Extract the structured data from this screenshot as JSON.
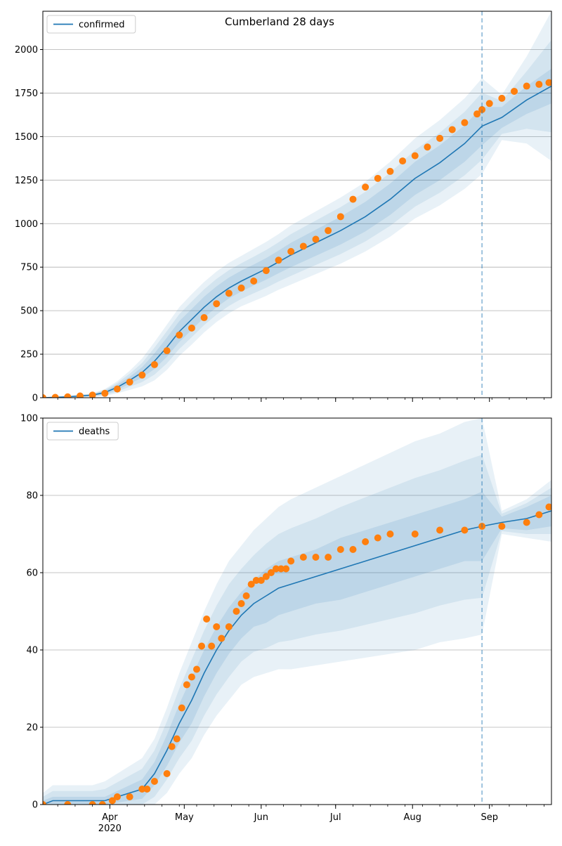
{
  "figure_title": "Cumberland 28 days",
  "chart_data": [
    {
      "type": "line",
      "title": "Cumberland 28 days",
      "legend": [
        "confirmed"
      ],
      "legend_position": "top-left",
      "xlim": [
        0,
        205
      ],
      "ylim": [
        0,
        2220
      ],
      "yticks": [
        0,
        250,
        500,
        750,
        1000,
        1250,
        1500,
        1750,
        2000
      ],
      "grid": "horizontal",
      "forecast_start_day": 177,
      "x_tick_days": [
        27,
        57,
        88,
        118,
        149,
        180
      ],
      "x_tick_labels": [
        "Apr",
        "May",
        "Jun",
        "Jul",
        "Aug",
        "Sep"
      ],
      "x_year_label": "2020",
      "x_unit": "days since Mar 5 2020",
      "model_curve": {
        "name": "confirmed",
        "x": [
          0,
          10,
          20,
          25,
          30,
          35,
          40,
          45,
          50,
          55,
          60,
          65,
          70,
          75,
          80,
          85,
          90,
          95,
          100,
          110,
          120,
          130,
          140,
          150,
          160,
          170,
          177,
          185,
          195,
          205
        ],
        "y": [
          0,
          5,
          15,
          30,
          60,
          100,
          145,
          210,
          290,
          380,
          450,
          520,
          580,
          630,
          670,
          705,
          740,
          780,
          820,
          890,
          960,
          1040,
          1140,
          1260,
          1350,
          1460,
          1560,
          1610,
          1710,
          1790
        ]
      },
      "observed": {
        "x": [
          0,
          5,
          10,
          15,
          20,
          25,
          30,
          35,
          40,
          45,
          50,
          55,
          60,
          65,
          70,
          75,
          80,
          85,
          90,
          95,
          100,
          105,
          110,
          115,
          120,
          125,
          130,
          135,
          140,
          145,
          150,
          155,
          160,
          165,
          170,
          175,
          177,
          180,
          185,
          190,
          195,
          200,
          204
        ],
        "y": [
          0,
          2,
          5,
          10,
          15,
          25,
          50,
          90,
          130,
          190,
          270,
          360,
          400,
          460,
          540,
          600,
          630,
          670,
          730,
          790,
          840,
          870,
          910,
          960,
          1040,
          1140,
          1210,
          1260,
          1300,
          1360,
          1390,
          1440,
          1490,
          1540,
          1580,
          1630,
          1655,
          1690,
          1720,
          1760,
          1790,
          1800,
          1810
        ]
      },
      "band_inner_halfwidth": [
        0,
        3,
        5,
        10,
        15,
        20,
        30,
        45,
        55,
        60,
        60,
        60,
        60,
        60,
        60,
        60,
        62,
        65,
        70,
        75,
        80,
        85,
        90,
        95,
        100,
        105,
        110,
        60,
        80,
        100
      ],
      "band_outer_halfwidth": [
        0,
        6,
        10,
        20,
        35,
        55,
        80,
        110,
        130,
        140,
        145,
        145,
        145,
        145,
        145,
        150,
        155,
        160,
        170,
        180,
        190,
        200,
        215,
        230,
        245,
        260,
        275,
        130,
        250,
        430
      ]
    },
    {
      "type": "line",
      "legend": [
        "deaths"
      ],
      "legend_position": "top-left",
      "xlim": [
        0,
        205
      ],
      "ylim": [
        0,
        100
      ],
      "yticks": [
        0,
        20,
        40,
        60,
        80,
        100
      ],
      "grid": "horizontal",
      "forecast_start_day": 177,
      "x_tick_days": [
        27,
        57,
        88,
        118,
        149,
        180
      ],
      "x_tick_labels": [
        "Apr",
        "May",
        "Jun",
        "Jul",
        "Aug",
        "Sep"
      ],
      "x_year_label": "2020",
      "x_unit": "days since Mar 5 2020",
      "model_curve": {
        "name": "deaths",
        "x": [
          0,
          4,
          20,
          25,
          30,
          35,
          40,
          45,
          50,
          55,
          60,
          65,
          70,
          75,
          80,
          85,
          90,
          95,
          100,
          110,
          120,
          130,
          140,
          150,
          160,
          170,
          177,
          185,
          195,
          205
        ],
        "y": [
          0,
          1,
          1,
          1,
          2,
          3,
          4,
          8,
          14,
          21,
          27,
          34,
          40,
          45,
          49,
          52,
          54,
          56,
          57,
          59,
          61,
          63,
          65,
          67,
          69,
          71,
          72,
          73,
          74,
          76
        ]
      },
      "observed": {
        "x": [
          0,
          10,
          20,
          24,
          28,
          30,
          35,
          40,
          42,
          45,
          50,
          52,
          54,
          56,
          58,
          60,
          62,
          64,
          66,
          68,
          70,
          72,
          75,
          78,
          80,
          82,
          84,
          86,
          88,
          90,
          92,
          94,
          96,
          98,
          100,
          105,
          110,
          115,
          120,
          125,
          130,
          135,
          140,
          150,
          160,
          170,
          177,
          185,
          195,
          200,
          204
        ],
        "y": [
          0,
          0,
          0,
          0,
          1,
          2,
          2,
          4,
          4,
          6,
          8,
          15,
          17,
          25,
          31,
          33,
          35,
          41,
          48,
          41,
          46,
          43,
          46,
          50,
          52,
          54,
          57,
          58,
          58,
          59,
          60,
          61,
          61,
          61,
          63,
          64,
          64,
          64,
          66,
          66,
          68,
          69,
          70,
          70,
          71,
          71,
          72,
          72,
          73,
          75,
          77
        ]
      },
      "band_inner_halfwidth": [
        1,
        1,
        1,
        1,
        1.5,
        2,
        2.5,
        3,
        4,
        5,
        6,
        6,
        6,
        6,
        6,
        6,
        7,
        7,
        7,
        7,
        8,
        8,
        8,
        8,
        8,
        8,
        9,
        1.5,
        3,
        4
      ],
      "band_outer_halfwidth": [
        3,
        4,
        4,
        5,
        6,
        7,
        8,
        9,
        11,
        13,
        15,
        16,
        17,
        18,
        18,
        19,
        20,
        21,
        22,
        23,
        24,
        25,
        26,
        27,
        27,
        28,
        28,
        3,
        5,
        8
      ]
    }
  ]
}
